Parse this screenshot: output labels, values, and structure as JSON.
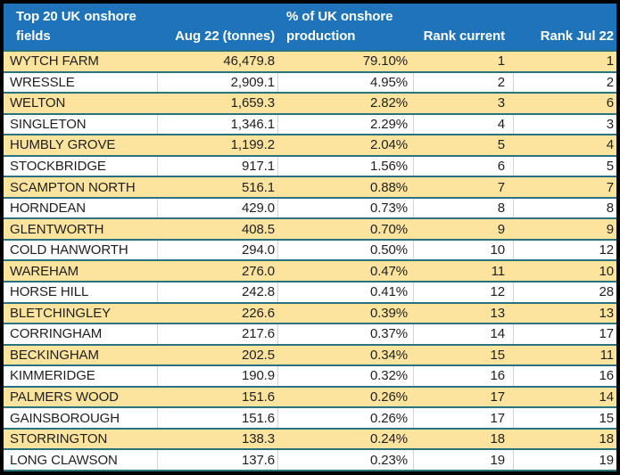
{
  "table": {
    "header": {
      "fields_line1": "Top 20 UK onshore",
      "fields_line2": "fields",
      "tonnes": "Aug 22 (tonnes)",
      "pct_line1": "% of UK onshore",
      "pct_line2": "production",
      "rank_current": "Rank current",
      "rank_jul": "Rank Jul 22"
    },
    "rows": [
      {
        "field": "WYTCH FARM",
        "tonnes": "46,479.8",
        "pct": "79.10%",
        "rank_current": "1",
        "rank_jul": "1"
      },
      {
        "field": "WRESSLE",
        "tonnes": "2,909.1",
        "pct": "4.95%",
        "rank_current": "2",
        "rank_jul": "2"
      },
      {
        "field": "WELTON",
        "tonnes": "1,659.3",
        "pct": "2.82%",
        "rank_current": "3",
        "rank_jul": "6"
      },
      {
        "field": "SINGLETON",
        "tonnes": "1,346.1",
        "pct": "2.29%",
        "rank_current": "4",
        "rank_jul": "3"
      },
      {
        "field": "HUMBLY GROVE",
        "tonnes": "1,199.2",
        "pct": "2.04%",
        "rank_current": "5",
        "rank_jul": "4"
      },
      {
        "field": "STOCKBRIDGE",
        "tonnes": "917.1",
        "pct": "1.56%",
        "rank_current": "6",
        "rank_jul": "5"
      },
      {
        "field": "SCAMPTON NORTH",
        "tonnes": "516.1",
        "pct": "0.88%",
        "rank_current": "7",
        "rank_jul": "7"
      },
      {
        "field": "HORNDEAN",
        "tonnes": "429.0",
        "pct": "0.73%",
        "rank_current": "8",
        "rank_jul": "8"
      },
      {
        "field": "GLENTWORTH",
        "tonnes": "408.5",
        "pct": "0.70%",
        "rank_current": "9",
        "rank_jul": "9"
      },
      {
        "field": "COLD HANWORTH",
        "tonnes": "294.0",
        "pct": "0.50%",
        "rank_current": "10",
        "rank_jul": "12"
      },
      {
        "field": "WAREHAM",
        "tonnes": "276.0",
        "pct": "0.47%",
        "rank_current": "11",
        "rank_jul": "10"
      },
      {
        "field": "HORSE HILL",
        "tonnes": "242.8",
        "pct": "0.41%",
        "rank_current": "12",
        "rank_jul": "28"
      },
      {
        "field": "BLETCHINGLEY",
        "tonnes": "226.6",
        "pct": "0.39%",
        "rank_current": "13",
        "rank_jul": "13"
      },
      {
        "field": "CORRINGHAM",
        "tonnes": "217.6",
        "pct": "0.37%",
        "rank_current": "14",
        "rank_jul": "17"
      },
      {
        "field": "BECKINGHAM",
        "tonnes": "202.5",
        "pct": "0.34%",
        "rank_current": "15",
        "rank_jul": "11"
      },
      {
        "field": "KIMMERIDGE",
        "tonnes": "190.9",
        "pct": "0.32%",
        "rank_current": "16",
        "rank_jul": "16"
      },
      {
        "field": "PALMERS WOOD",
        "tonnes": "151.6",
        "pct": "0.26%",
        "rank_current": "17",
        "rank_jul": "14"
      },
      {
        "field": "GAINSBOROUGH",
        "tonnes": "151.6",
        "pct": "0.26%",
        "rank_current": "17",
        "rank_jul": "15"
      },
      {
        "field": "STORRINGTON",
        "tonnes": "138.3",
        "pct": "0.24%",
        "rank_current": "18",
        "rank_jul": "18"
      },
      {
        "field": "LONG CLAWSON",
        "tonnes": "137.6",
        "pct": "0.23%",
        "rank_current": "19",
        "rank_jul": "19"
      }
    ]
  },
  "colors": {
    "header_bg": "#1e73b9",
    "header_text": "#ffffff",
    "row_yellow": "#fce49e",
    "row_white": "#ffffff",
    "row_border_teal": "#2a7280",
    "grid_line": "#d4d4d4",
    "outer_border": "#000000",
    "text": "#1f1f1f"
  },
  "chart_data": {
    "type": "table",
    "title": "Top 20 UK onshore fields",
    "columns": [
      "Top 20 UK onshore fields",
      "Aug 22 (tonnes)",
      "% of UK onshore production",
      "Rank current",
      "Rank Jul 22"
    ],
    "rows": [
      [
        "WYTCH FARM",
        46479.8,
        79.1,
        1,
        1
      ],
      [
        "WRESSLE",
        2909.1,
        4.95,
        2,
        2
      ],
      [
        "WELTON",
        1659.3,
        2.82,
        3,
        6
      ],
      [
        "SINGLETON",
        1346.1,
        2.29,
        4,
        3
      ],
      [
        "HUMBLY GROVE",
        1199.2,
        2.04,
        5,
        4
      ],
      [
        "STOCKBRIDGE",
        917.1,
        1.56,
        6,
        5
      ],
      [
        "SCAMPTON NORTH",
        516.1,
        0.88,
        7,
        7
      ],
      [
        "HORNDEAN",
        429.0,
        0.73,
        8,
        8
      ],
      [
        "GLENTWORTH",
        408.5,
        0.7,
        9,
        9
      ],
      [
        "COLD HANWORTH",
        294.0,
        0.5,
        10,
        12
      ],
      [
        "WAREHAM",
        276.0,
        0.47,
        11,
        10
      ],
      [
        "HORSE HILL",
        242.8,
        0.41,
        12,
        28
      ],
      [
        "BLETCHINGLEY",
        226.6,
        0.39,
        13,
        13
      ],
      [
        "CORRINGHAM",
        217.6,
        0.37,
        14,
        17
      ],
      [
        "BECKINGHAM",
        202.5,
        0.34,
        15,
        11
      ],
      [
        "KIMMERIDGE",
        190.9,
        0.32,
        16,
        16
      ],
      [
        "PALMERS WOOD",
        151.6,
        0.26,
        17,
        14
      ],
      [
        "GAINSBOROUGH",
        151.6,
        0.26,
        17,
        15
      ],
      [
        "STORRINGTON",
        138.3,
        0.24,
        18,
        18
      ],
      [
        "LONG CLAWSON",
        137.6,
        0.23,
        19,
        19
      ]
    ]
  }
}
